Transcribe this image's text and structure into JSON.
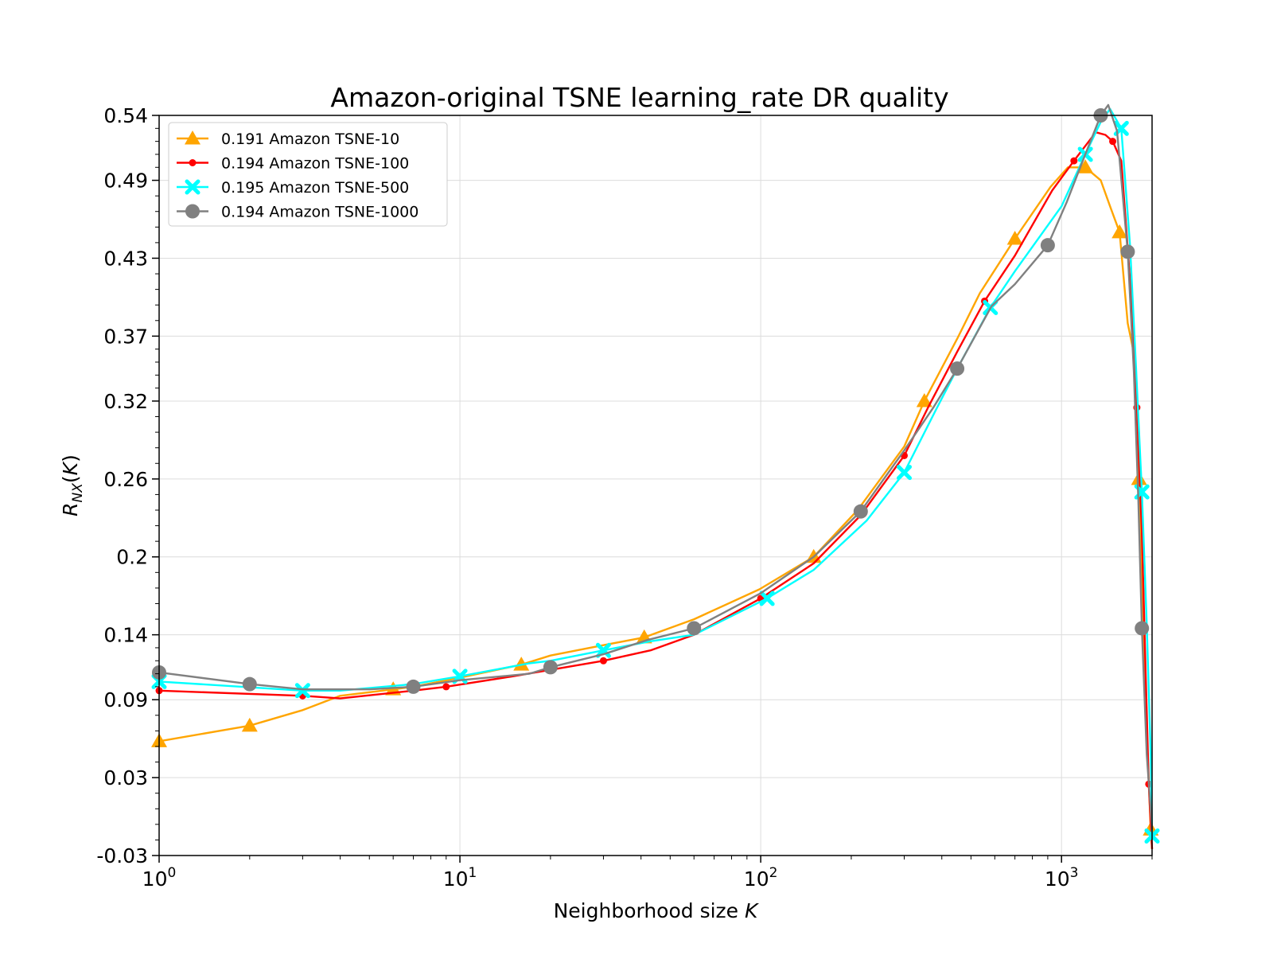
{
  "chart_data": {
    "type": "line",
    "title": "Amazon-original TSNE learning_rate DR quality",
    "xlabel": "Neighborhood size K",
    "ylabel": "R_NX(K)",
    "x_scale": "log",
    "xlim": [
      1,
      2000
    ],
    "ylim": [
      -0.03,
      0.54
    ],
    "x_ticks": [
      {
        "value": 1,
        "base": "10",
        "exp": "0"
      },
      {
        "value": 10,
        "base": "10",
        "exp": "1"
      },
      {
        "value": 100,
        "base": "10",
        "exp": "2"
      },
      {
        "value": 1000,
        "base": "10",
        "exp": "3"
      }
    ],
    "y_ticks": [
      -0.03,
      0.03,
      0.09,
      0.14,
      0.2,
      0.26,
      0.32,
      0.37,
      0.43,
      0.49,
      0.54
    ],
    "y_tick_labels": [
      "-0.03",
      "0.03",
      "0.09",
      "0.14",
      "0.2",
      "0.26",
      "0.32",
      "0.37",
      "0.43",
      "0.49",
      "0.54"
    ],
    "grid": true,
    "legend_position": "top-left",
    "series": [
      {
        "name": "0.191 Amazon TSNE-10",
        "color": "#FFA500",
        "marker": "triangle",
        "x": [
          1,
          2,
          3,
          4,
          6,
          7,
          10,
          16,
          20,
          30,
          41,
          60,
          99,
          150,
          210,
          300,
          350,
          450,
          535,
          700,
          920,
          1050,
          1200,
          1350,
          1450,
          1560,
          1660,
          1740,
          1810,
          1860,
          1920,
          1980,
          2000
        ],
        "y": [
          0.058,
          0.07,
          0.082,
          0.093,
          0.098,
          0.1,
          0.107,
          0.117,
          0.124,
          0.132,
          0.138,
          0.152,
          0.175,
          0.2,
          0.236,
          0.285,
          0.32,
          0.368,
          0.403,
          0.445,
          0.485,
          0.5,
          0.5,
          0.49,
          0.47,
          0.45,
          0.38,
          0.357,
          0.26,
          0.162,
          0.065,
          -0.01,
          -0.025
        ]
      },
      {
        "name": "0.194 Amazon TSNE-100",
        "color": "#FF0000",
        "marker": "dot",
        "x": [
          1,
          3,
          4,
          7,
          9,
          15,
          20,
          30,
          43,
          60,
          100,
          150,
          215,
          300,
          360,
          450,
          555,
          700,
          930,
          1100,
          1300,
          1400,
          1480,
          1580,
          1700,
          1780,
          1850,
          1900,
          1950,
          2000
        ],
        "y": [
          0.097,
          0.093,
          0.091,
          0.097,
          0.1,
          0.108,
          0.113,
          0.12,
          0.128,
          0.14,
          0.168,
          0.195,
          0.232,
          0.278,
          0.315,
          0.358,
          0.397,
          0.432,
          0.482,
          0.505,
          0.527,
          0.525,
          0.52,
          0.505,
          0.405,
          0.315,
          0.22,
          0.118,
          0.025,
          -0.025
        ]
      },
      {
        "name": "0.195 Amazon TSNE-500",
        "color": "#00FFFF",
        "marker": "x",
        "x": [
          1,
          3,
          4,
          7,
          10,
          17,
          20,
          30,
          43,
          60,
          105,
          150,
          225,
          300,
          380,
          450,
          580,
          700,
          1000,
          1200,
          1350,
          1450,
          1580,
          1690,
          1770,
          1850,
          1920,
          1980,
          2000
        ],
        "y": [
          0.104,
          0.097,
          0.097,
          0.102,
          0.108,
          0.118,
          0.12,
          0.128,
          0.135,
          0.14,
          0.168,
          0.19,
          0.228,
          0.265,
          0.312,
          0.345,
          0.392,
          0.42,
          0.47,
          0.51,
          0.535,
          0.545,
          0.53,
          0.44,
          0.345,
          0.25,
          0.148,
          0.048,
          -0.015
        ]
      },
      {
        "name": "0.194 Amazon TSNE-1000",
        "color": "#808080",
        "marker": "circle",
        "x": [
          1,
          2,
          3,
          5,
          7,
          10,
          17,
          20,
          30,
          42,
          60,
          100,
          150,
          215,
          300,
          375,
          450,
          585,
          700,
          900,
          1040,
          1200,
          1350,
          1430,
          1530,
          1660,
          1740,
          1800,
          1850,
          1920,
          2000
        ],
        "y": [
          0.111,
          0.102,
          0.098,
          0.098,
          0.1,
          0.105,
          0.11,
          0.115,
          0.125,
          0.136,
          0.145,
          0.172,
          0.2,
          0.235,
          0.282,
          0.315,
          0.345,
          0.393,
          0.41,
          0.44,
          0.473,
          0.51,
          0.54,
          0.548,
          0.528,
          0.435,
          0.343,
          0.245,
          0.145,
          0.048,
          -0.01
        ]
      }
    ]
  }
}
